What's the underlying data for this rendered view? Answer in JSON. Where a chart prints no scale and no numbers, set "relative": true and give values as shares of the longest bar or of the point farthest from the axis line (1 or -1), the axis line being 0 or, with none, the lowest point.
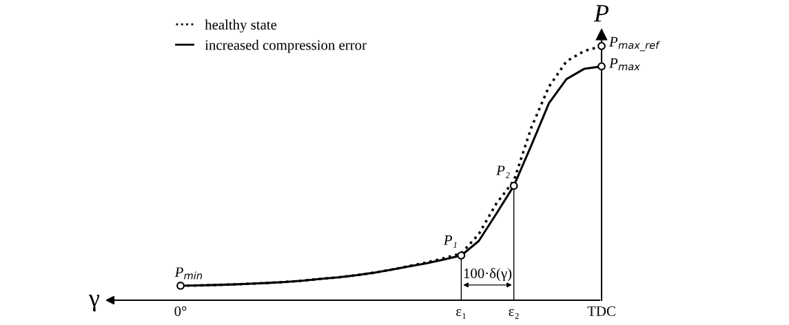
{
  "chart_data": {
    "type": "line",
    "relative": true,
    "xlabel": "γ",
    "ylabel": "P",
    "legend": "top left",
    "categories": [
      "0°",
      null,
      null,
      null,
      null,
      null,
      null,
      null,
      null,
      null,
      null,
      null,
      null,
      null,
      null,
      null,
      "ε₁",
      null,
      null,
      "ε₂",
      null,
      null,
      null,
      null,
      "TDC"
    ],
    "series": [
      {
        "name": "healthy state",
        "color": "#000000",
        "line_style": "dotted",
        "values": [
          0.057,
          0.058,
          0.06,
          0.062,
          0.065,
          0.068,
          0.072,
          0.077,
          0.084,
          0.09,
          0.098,
          0.108,
          0.12,
          0.134,
          0.148,
          0.165,
          0.184,
          0.26,
          0.38,
          0.47,
          0.68,
          0.84,
          0.94,
          0.98,
          1
        ]
      },
      {
        "name": "increased compression error",
        "color": "#000000",
        "line_style": "solid",
        "values": [
          0.057,
          0.058,
          0.06,
          0.062,
          0.065,
          0.068,
          0.072,
          0.077,
          0.084,
          0.09,
          0.098,
          0.108,
          0.12,
          0.133,
          0.145,
          0.16,
          0.176,
          0.233,
          0.34,
          0.45,
          0.61,
          0.775,
          0.87,
          0.91,
          0.92
        ]
      }
    ],
    "annotations": [
      "100·δ(γ)",
      {
        "text": "P$_{min}$",
        "x": "0°",
        "y": 0.057
      },
      {
        "text": "P₁",
        "x": "ε₁",
        "y": 0.176
      },
      {
        "text": "P₂",
        "x": "ε₂",
        "y": 0.45
      },
      {
        "text": "P$_{max}$",
        "x": "TDC",
        "y": 0.92
      },
      {
        "text": "P$_{max_ref}$",
        "x": "TDC",
        "y": 1
      }
    ],
    "ref_lines": [
      {
        "axis": "x",
        "value": "ε₁"
      },
      {
        "axis": "x",
        "value": "ε₂"
      }
    ]
  }
}
